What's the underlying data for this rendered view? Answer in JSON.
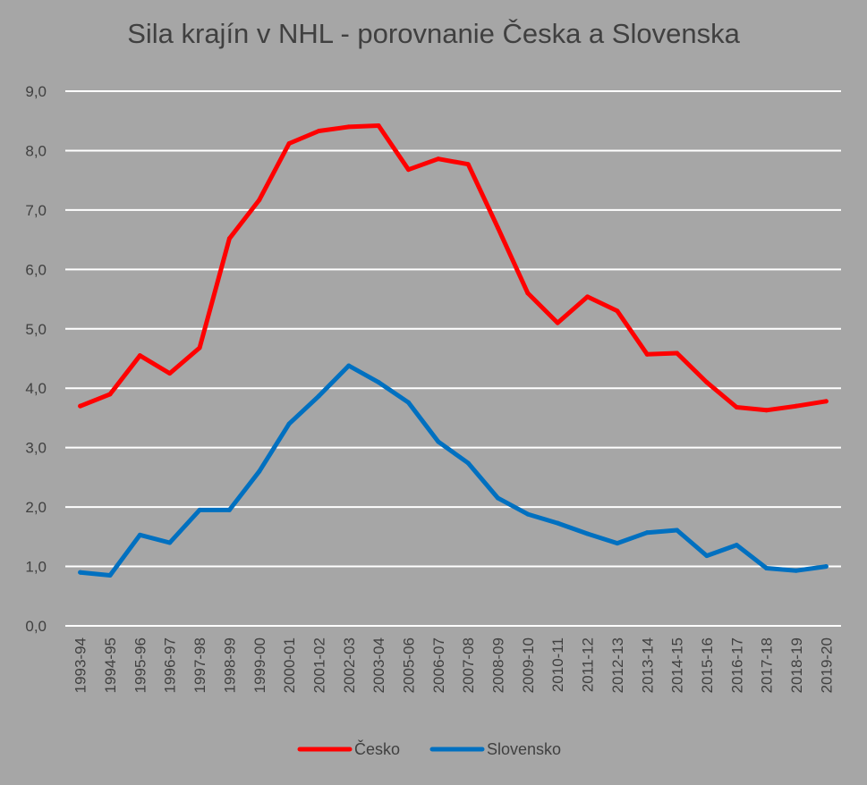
{
  "chart_data": {
    "type": "line",
    "title": "Sila krajín v NHL - porovnanie Česka a Slovenska",
    "categories": [
      "1993-94",
      "1994-95",
      "1995-96",
      "1996-97",
      "1997-98",
      "1998-99",
      "1999-00",
      "2000-01",
      "2001-02",
      "2002-03",
      "2003-04",
      "2005-06",
      "2006-07",
      "2007-08",
      "2008-09",
      "2009-10",
      "2010-11",
      "2011-12",
      "2012-13",
      "2013-14",
      "2014-15",
      "2015-16",
      "2016-17",
      "2017-18",
      "2018-19",
      "2019-20"
    ],
    "series": [
      {
        "name": "Česko",
        "color": "#ff0000",
        "values": [
          3.7,
          3.9,
          4.55,
          4.25,
          4.68,
          6.52,
          7.17,
          8.12,
          8.33,
          8.4,
          8.42,
          7.68,
          7.86,
          7.77,
          6.7,
          5.6,
          5.1,
          5.54,
          5.3,
          4.57,
          4.59,
          4.1,
          3.68,
          3.63,
          3.7,
          3.78
        ]
      },
      {
        "name": "Slovensko",
        "color": "#0070c0",
        "values": [
          0.9,
          0.85,
          1.53,
          1.4,
          1.95,
          1.95,
          2.6,
          3.4,
          3.87,
          4.38,
          4.1,
          3.76,
          3.1,
          2.74,
          2.15,
          1.88,
          1.73,
          1.55,
          1.39,
          1.57,
          1.61,
          1.18,
          1.36,
          0.97,
          0.93,
          1.0
        ]
      }
    ],
    "yticks": [
      "0,0",
      "1,0",
      "2,0",
      "3,0",
      "4,0",
      "5,0",
      "6,0",
      "7,0",
      "8,0",
      "9,0"
    ],
    "ylim": [
      0,
      9
    ],
    "grid": true,
    "legend": "bottom"
  }
}
